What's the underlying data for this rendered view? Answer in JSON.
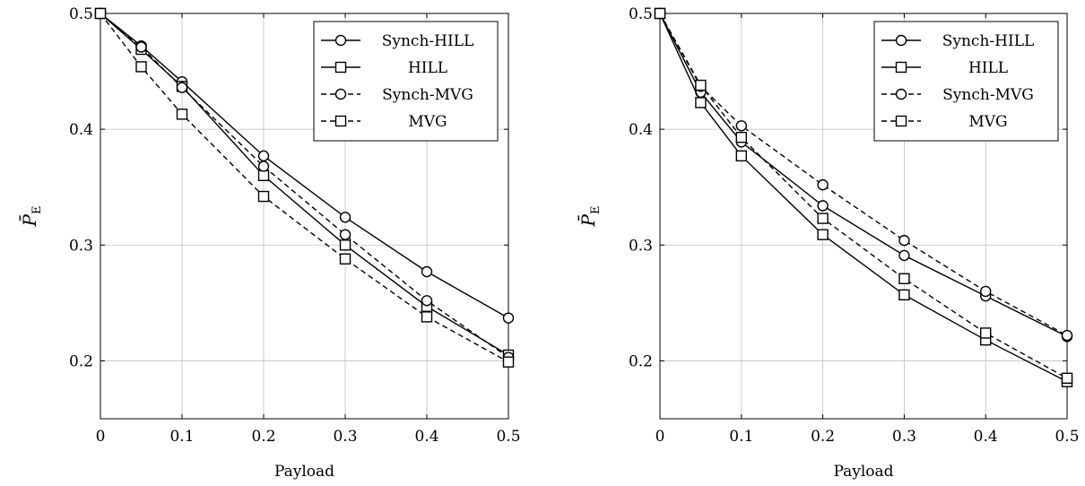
{
  "chart_data": [
    {
      "type": "line",
      "xlabel": "Payload",
      "ylabel": "P̄",
      "ylabel_sub": "E",
      "xlim": [
        0,
        0.5
      ],
      "ylim": [
        0.15,
        0.5
      ],
      "xticks": [
        0,
        0.1,
        0.2,
        0.3,
        0.4,
        0.5
      ],
      "xtick_labels": [
        "0",
        "0.1",
        "0.2",
        "0.3",
        "0.4",
        "0.5"
      ],
      "yticks": [
        0.2,
        0.3,
        0.4,
        0.5
      ],
      "ytick_labels": [
        "0.2",
        "0.3",
        "0.4",
        "0.5"
      ],
      "grid": true,
      "legend_position": "top-right",
      "x": [
        0,
        0.05,
        0.1,
        0.2,
        0.3,
        0.4,
        0.5
      ],
      "series": [
        {
          "name": "Synch-HILL",
          "marker": "circle",
          "dash": "solid",
          "values": [
            0.5,
            0.472,
            0.441,
            0.377,
            0.324,
            0.277,
            0.237
          ]
        },
        {
          "name": "HILL",
          "marker": "square",
          "dash": "solid",
          "values": [
            0.5,
            0.469,
            0.437,
            0.36,
            0.3,
            0.247,
            0.205
          ]
        },
        {
          "name": "Synch-MVG",
          "marker": "circle",
          "dash": "dashed",
          "values": [
            0.5,
            0.471,
            0.436,
            0.368,
            0.309,
            0.252,
            0.203
          ]
        },
        {
          "name": "MVG",
          "marker": "square",
          "dash": "dashed",
          "values": [
            0.5,
            0.454,
            0.413,
            0.342,
            0.288,
            0.238,
            0.199
          ]
        }
      ]
    },
    {
      "type": "line",
      "xlabel": "Payload",
      "ylabel": "P̄",
      "ylabel_sub": "E",
      "xlim": [
        0,
        0.5
      ],
      "ylim": [
        0.15,
        0.5
      ],
      "xticks": [
        0,
        0.1,
        0.2,
        0.3,
        0.4,
        0.5
      ],
      "xtick_labels": [
        "0",
        "0.1",
        "0.2",
        "0.3",
        "0.4",
        "0.5"
      ],
      "yticks": [
        0.2,
        0.3,
        0.4,
        0.5
      ],
      "ytick_labels": [
        "0.2",
        "0.3",
        "0.4",
        "0.5"
      ],
      "grid": true,
      "legend_position": "top-right",
      "x": [
        0,
        0.05,
        0.1,
        0.2,
        0.3,
        0.4,
        0.5
      ],
      "series": [
        {
          "name": "Synch-HILL",
          "marker": "circle",
          "dash": "solid",
          "values": [
            0.5,
            0.432,
            0.389,
            0.334,
            0.291,
            0.256,
            0.221
          ]
        },
        {
          "name": "HILL",
          "marker": "square",
          "dash": "solid",
          "values": [
            0.5,
            0.423,
            0.377,
            0.309,
            0.257,
            0.218,
            0.182
          ]
        },
        {
          "name": "Synch-MVG",
          "marker": "circle",
          "dash": "dashed",
          "values": [
            0.5,
            0.437,
            0.403,
            0.352,
            0.304,
            0.26,
            0.222
          ]
        },
        {
          "name": "MVG",
          "marker": "square",
          "dash": "dashed",
          "values": [
            0.5,
            0.438,
            0.393,
            0.323,
            0.271,
            0.224,
            0.185
          ]
        }
      ]
    }
  ]
}
